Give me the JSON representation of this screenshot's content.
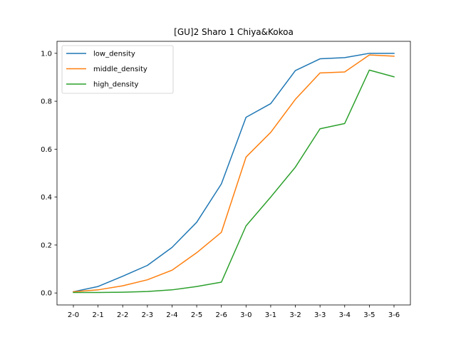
{
  "chart_data": {
    "type": "line",
    "title": "[GU]2 Sharo 1 Chiya&Kokoa",
    "xlabel": "",
    "ylabel": "",
    "categories": [
      "2-0",
      "2-1",
      "2-2",
      "2-3",
      "2-4",
      "2-5",
      "2-6",
      "3-0",
      "3-1",
      "3-2",
      "3-3",
      "3-4",
      "3-5",
      "3-6"
    ],
    "ylim": [
      -0.05,
      1.05
    ],
    "yticks": [
      0.0,
      0.2,
      0.4,
      0.6,
      0.8,
      1.0
    ],
    "ytick_labels": [
      "0.0",
      "0.2",
      "0.4",
      "0.6",
      "0.8",
      "1.0"
    ],
    "grid": false,
    "legend_position": "top-left",
    "series": [
      {
        "name": "low_density",
        "color": "#1f77b4",
        "values": [
          0.005,
          0.027,
          0.07,
          0.115,
          0.19,
          0.295,
          0.455,
          0.733,
          0.79,
          0.928,
          0.977,
          0.982,
          1.0,
          1.0
        ]
      },
      {
        "name": "middle_density",
        "color": "#ff7f0e",
        "values": [
          0.005,
          0.013,
          0.03,
          0.055,
          0.095,
          0.168,
          0.253,
          0.567,
          0.67,
          0.808,
          0.918,
          0.922,
          0.993,
          0.988
        ]
      },
      {
        "name": "high_density",
        "color": "#2ca02c",
        "values": [
          0.002,
          0.002,
          0.003,
          0.006,
          0.013,
          0.027,
          0.045,
          0.28,
          0.4,
          0.525,
          0.685,
          0.707,
          0.93,
          0.902
        ]
      }
    ]
  }
}
